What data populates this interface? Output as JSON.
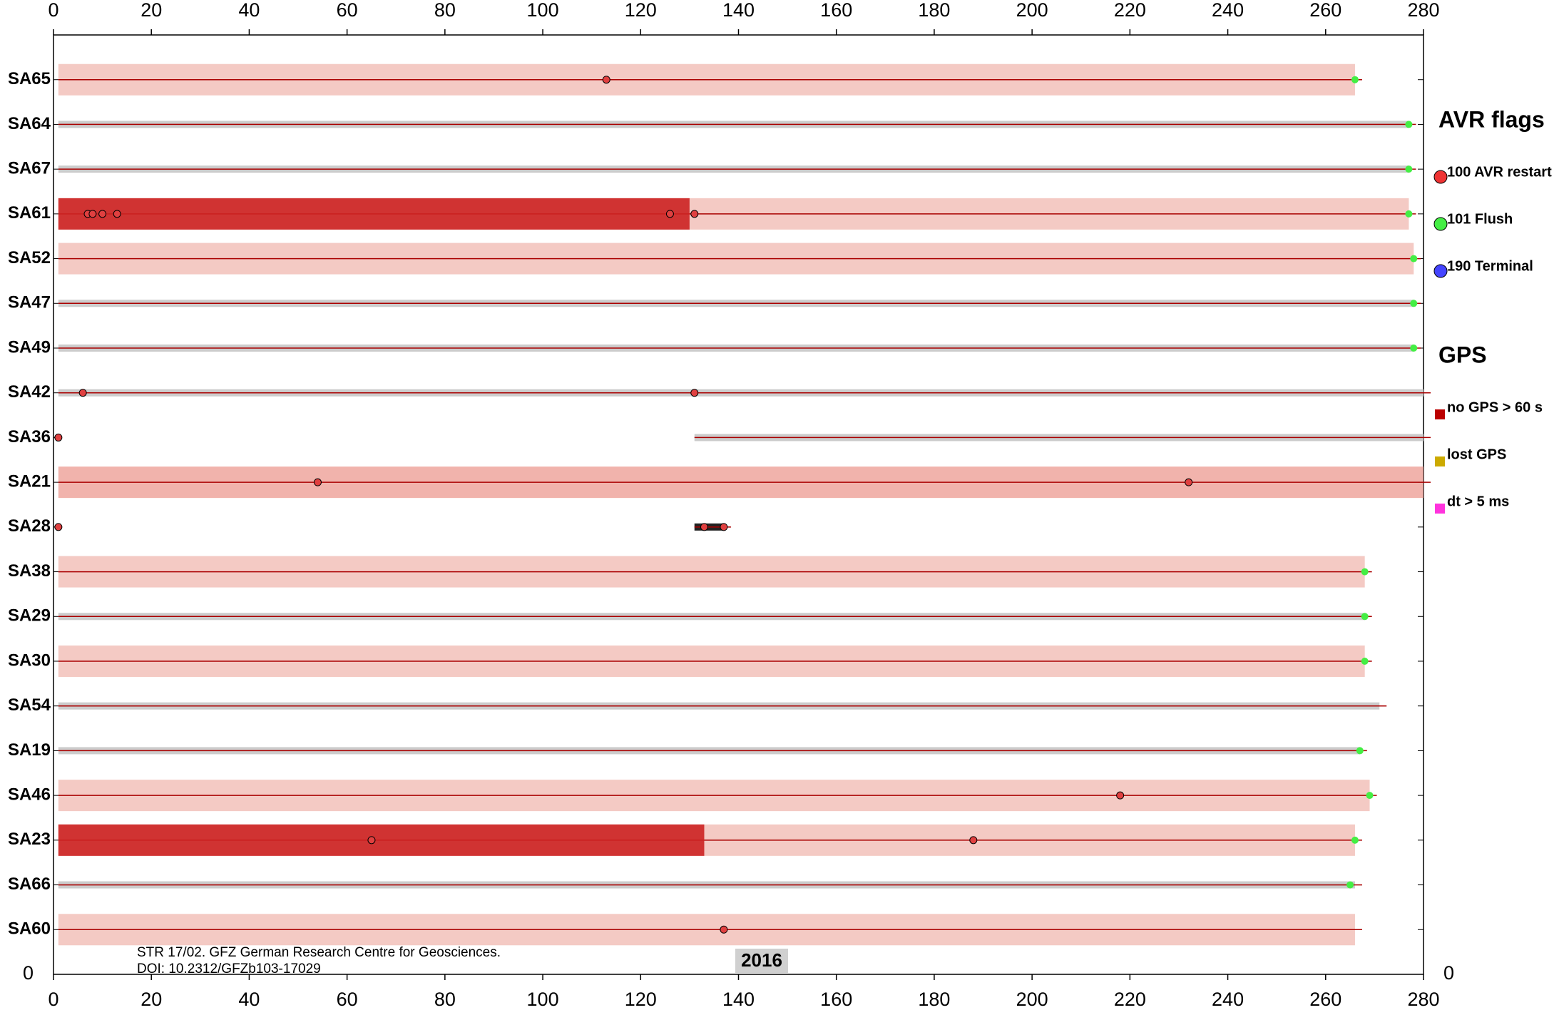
{
  "chart_data": {
    "type": "timeline",
    "xlim": [
      0,
      280
    ],
    "xticks": [
      0,
      20,
      40,
      60,
      80,
      100,
      120,
      140,
      160,
      180,
      200,
      220,
      240,
      260,
      280
    ],
    "ylim": [
      0,
      21
    ],
    "yticks": [
      0
    ],
    "stations": [
      {
        "name": "SA65",
        "color": "#f0b8b0",
        "spans": [
          [
            1,
            266
          ]
        ],
        "restarts": [
          113
        ],
        "flush": 266
      },
      {
        "name": "SA64",
        "color": "#cccccc",
        "spans": [
          [
            1,
            277
          ]
        ],
        "restarts": [],
        "flush": 277
      },
      {
        "name": "SA67",
        "color": "#cccccc",
        "spans": [
          [
            1,
            277
          ]
        ],
        "restarts": [],
        "flush": 277
      },
      {
        "name": "SA61",
        "color": "#f0b8b0",
        "spans": [
          [
            1,
            277
          ]
        ],
        "red_band": [
          1,
          130
        ],
        "restarts": [
          7,
          8,
          10,
          13,
          126,
          131
        ],
        "flush": 277
      },
      {
        "name": "SA52",
        "color": "#f0b8b0",
        "spans": [
          [
            1,
            278
          ]
        ],
        "restarts": [],
        "flush": 278
      },
      {
        "name": "SA47",
        "color": "#cccccc",
        "spans": [
          [
            1,
            278
          ]
        ],
        "restarts": [],
        "flush": 278
      },
      {
        "name": "SA49",
        "color": "#cccccc",
        "spans": [
          [
            1,
            278
          ]
        ],
        "restarts": [],
        "flush": 278
      },
      {
        "name": "SA42",
        "color": "#cccccc",
        "spans": [
          [
            1,
            280
          ]
        ],
        "restarts": [
          6,
          131
        ]
      },
      {
        "name": "SA36",
        "color": "#cccccc",
        "spans": [
          [
            131,
            280
          ]
        ],
        "restarts": [
          1
        ]
      },
      {
        "name": "SA21",
        "color": "#ec9a90",
        "spans": [
          [
            1,
            280
          ]
        ],
        "restarts": [
          54,
          232
        ]
      },
      {
        "name": "SA28",
        "color": "#222222",
        "spans": [
          [
            131,
            137
          ]
        ],
        "restarts": [
          1,
          133,
          137
        ]
      },
      {
        "name": "SA38",
        "color": "#f0b8b0",
        "spans": [
          [
            1,
            268
          ]
        ],
        "restarts": [],
        "flush": 268
      },
      {
        "name": "SA29",
        "color": "#cccccc",
        "spans": [
          [
            1,
            268
          ]
        ],
        "restarts": [],
        "flush": 268
      },
      {
        "name": "SA30",
        "color": "#f0b8b0",
        "spans": [
          [
            1,
            268
          ]
        ],
        "restarts": [],
        "flush": 268
      },
      {
        "name": "SA54",
        "color": "#cccccc",
        "spans": [
          [
            1,
            271
          ]
        ],
        "restarts": []
      },
      {
        "name": "SA19",
        "color": "#cccccc",
        "spans": [
          [
            1,
            267
          ]
        ],
        "restarts": [],
        "flush": 267
      },
      {
        "name": "SA46",
        "color": "#f0b8b0",
        "spans": [
          [
            1,
            269
          ]
        ],
        "restarts": [
          218
        ],
        "flush": 269
      },
      {
        "name": "SA23",
        "color": "#f0b8b0",
        "spans": [
          [
            1,
            266
          ]
        ],
        "red_band": [
          1,
          133
        ],
        "restarts": [
          65,
          188
        ],
        "flush": 266
      },
      {
        "name": "SA66",
        "color": "#cccccc",
        "spans": [
          [
            1,
            266
          ]
        ],
        "restarts": [],
        "flush": 265
      },
      {
        "name": "SA60",
        "color": "#f0b8b0",
        "spans": [
          [
            1,
            266
          ]
        ],
        "restarts": [
          137
        ]
      }
    ],
    "legend": {
      "groups": [
        {
          "title": "AVR flags",
          "items": [
            {
              "label": "100 AVR restart",
              "color": "#ee3333",
              "shape": "circle"
            },
            {
              "label": "101 Flush",
              "color": "#44ee44",
              "shape": "circle"
            },
            {
              "label": "190 Terminal",
              "color": "#4444ff",
              "shape": "circle"
            }
          ]
        },
        {
          "title": "GPS",
          "items": [
            {
              "label": "no GPS > 60 s",
              "color": "#bb0000",
              "shape": "square"
            },
            {
              "label": "lost GPS",
              "color": "#ccaa00",
              "shape": "square"
            },
            {
              "label": "dt > 5 ms",
              "color": "#ff33dd",
              "shape": "square"
            }
          ]
        }
      ]
    },
    "annotations": [
      "STR 17/02. GFZ German Research Centre for Geosciences.",
      "DOI: 10.2312/GFZb103-17029"
    ],
    "year_label": "2016"
  }
}
